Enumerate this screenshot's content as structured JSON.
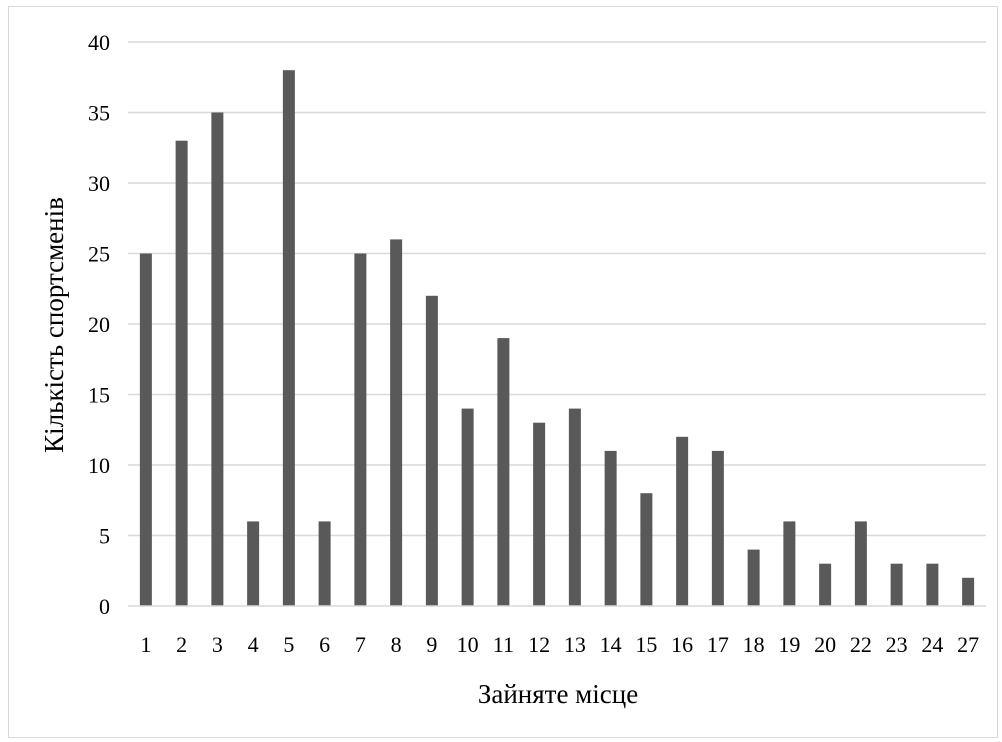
{
  "chart_data": {
    "type": "bar",
    "title": "",
    "xlabel": "Зайняте місце",
    "ylabel": "Кількість спортсменів",
    "categories": [
      "1",
      "2",
      "3",
      "4",
      "5",
      "6",
      "7",
      "8",
      "9",
      "10",
      "11",
      "12",
      "13",
      "14",
      "15",
      "16",
      "17",
      "18",
      "19",
      "20",
      "22",
      "23",
      "24",
      "27"
    ],
    "series": [
      {
        "values": [
          25,
          33,
          35,
          6,
          38,
          6,
          25,
          26,
          22,
          14,
          19,
          13,
          14,
          11,
          8,
          12,
          11,
          4,
          6,
          3,
          6,
          3,
          3,
          2
        ]
      }
    ],
    "ylim": [
      0,
      40
    ],
    "yticks": [
      0,
      5,
      10,
      15,
      20,
      25,
      30,
      35,
      40
    ],
    "grid": true,
    "legend": "none",
    "colors": {
      "bar": "#595959",
      "grid": "#d9d9d9",
      "axis": "#d9d9d9"
    }
  }
}
